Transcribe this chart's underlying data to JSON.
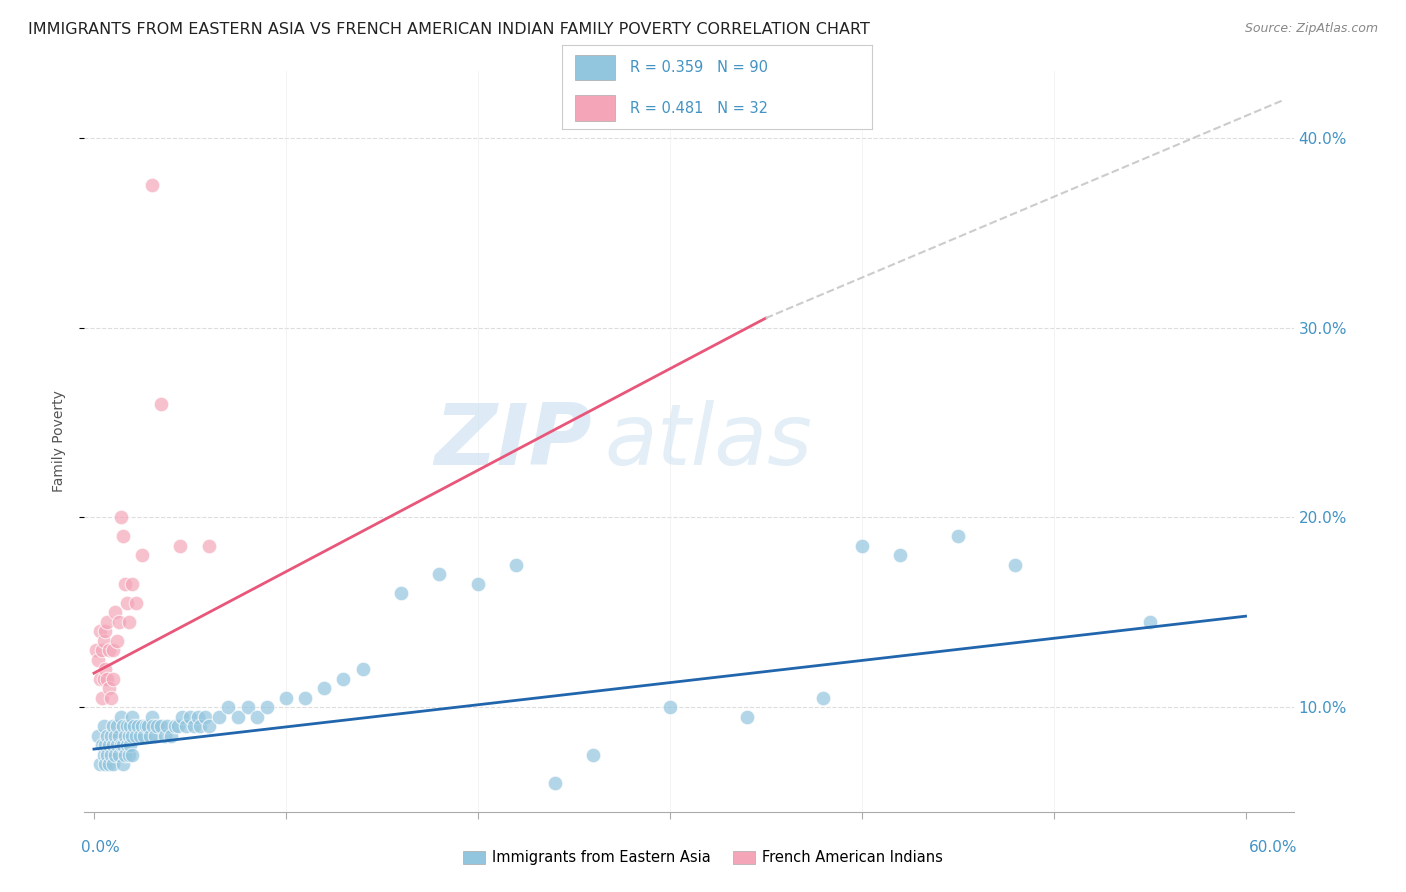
{
  "title": "IMMIGRANTS FROM EASTERN ASIA VS FRENCH AMERICAN INDIAN FAMILY POVERTY CORRELATION CHART",
  "source": "Source: ZipAtlas.com",
  "ylabel": "Family Poverty",
  "ylim": [
    0.045,
    0.435
  ],
  "xlim": [
    -0.005,
    0.625
  ],
  "color_blue": "#92c5de",
  "color_pink": "#f4a6b8",
  "color_blue_line": "#2166ac",
  "color_pink_line": "#e8567a",
  "color_dashed": "#cccccc",
  "watermark_zip": "ZIP",
  "watermark_atlas": "atlas",
  "blue_scatter_x": [
    0.002,
    0.003,
    0.004,
    0.005,
    0.005,
    0.006,
    0.006,
    0.007,
    0.007,
    0.008,
    0.008,
    0.009,
    0.009,
    0.01,
    0.01,
    0.01,
    0.011,
    0.011,
    0.012,
    0.012,
    0.013,
    0.013,
    0.014,
    0.014,
    0.015,
    0.015,
    0.015,
    0.016,
    0.016,
    0.017,
    0.017,
    0.018,
    0.018,
    0.019,
    0.019,
    0.02,
    0.02,
    0.02,
    0.021,
    0.022,
    0.023,
    0.024,
    0.025,
    0.026,
    0.027,
    0.028,
    0.029,
    0.03,
    0.031,
    0.032,
    0.033,
    0.035,
    0.037,
    0.038,
    0.04,
    0.042,
    0.044,
    0.046,
    0.048,
    0.05,
    0.052,
    0.054,
    0.055,
    0.058,
    0.06,
    0.065,
    0.07,
    0.075,
    0.08,
    0.085,
    0.09,
    0.1,
    0.11,
    0.12,
    0.13,
    0.14,
    0.16,
    0.18,
    0.2,
    0.22,
    0.24,
    0.26,
    0.3,
    0.34,
    0.38,
    0.4,
    0.42,
    0.45,
    0.48,
    0.55
  ],
  "blue_scatter_y": [
    0.085,
    0.07,
    0.08,
    0.09,
    0.075,
    0.08,
    0.07,
    0.085,
    0.075,
    0.08,
    0.07,
    0.085,
    0.075,
    0.09,
    0.08,
    0.07,
    0.085,
    0.075,
    0.09,
    0.08,
    0.085,
    0.075,
    0.095,
    0.08,
    0.09,
    0.08,
    0.07,
    0.085,
    0.075,
    0.09,
    0.08,
    0.085,
    0.075,
    0.09,
    0.08,
    0.095,
    0.085,
    0.075,
    0.09,
    0.085,
    0.09,
    0.085,
    0.09,
    0.085,
    0.09,
    0.09,
    0.085,
    0.095,
    0.09,
    0.085,
    0.09,
    0.09,
    0.085,
    0.09,
    0.085,
    0.09,
    0.09,
    0.095,
    0.09,
    0.095,
    0.09,
    0.095,
    0.09,
    0.095,
    0.09,
    0.095,
    0.1,
    0.095,
    0.1,
    0.095,
    0.1,
    0.105,
    0.105,
    0.11,
    0.115,
    0.12,
    0.16,
    0.17,
    0.165,
    0.175,
    0.06,
    0.075,
    0.1,
    0.095,
    0.105,
    0.185,
    0.18,
    0.19,
    0.175,
    0.145
  ],
  "pink_scatter_x": [
    0.001,
    0.002,
    0.003,
    0.003,
    0.004,
    0.004,
    0.005,
    0.005,
    0.006,
    0.006,
    0.007,
    0.007,
    0.008,
    0.008,
    0.009,
    0.01,
    0.01,
    0.011,
    0.012,
    0.013,
    0.014,
    0.015,
    0.016,
    0.017,
    0.018,
    0.02,
    0.022,
    0.025,
    0.03,
    0.035,
    0.045,
    0.06
  ],
  "pink_scatter_y": [
    0.13,
    0.125,
    0.14,
    0.115,
    0.13,
    0.105,
    0.135,
    0.115,
    0.14,
    0.12,
    0.145,
    0.115,
    0.13,
    0.11,
    0.105,
    0.13,
    0.115,
    0.15,
    0.135,
    0.145,
    0.2,
    0.19,
    0.165,
    0.155,
    0.145,
    0.165,
    0.155,
    0.18,
    0.375,
    0.26,
    0.185,
    0.185
  ],
  "blue_line_x": [
    0.0,
    0.6
  ],
  "blue_line_y": [
    0.078,
    0.148
  ],
  "pink_line_x": [
    0.0,
    0.35
  ],
  "pink_line_y": [
    0.118,
    0.305
  ],
  "dashed_line_x": [
    0.35,
    0.62
  ],
  "dashed_line_y": [
    0.305,
    0.42
  ],
  "title_fontsize": 11.5,
  "source_fontsize": 9
}
